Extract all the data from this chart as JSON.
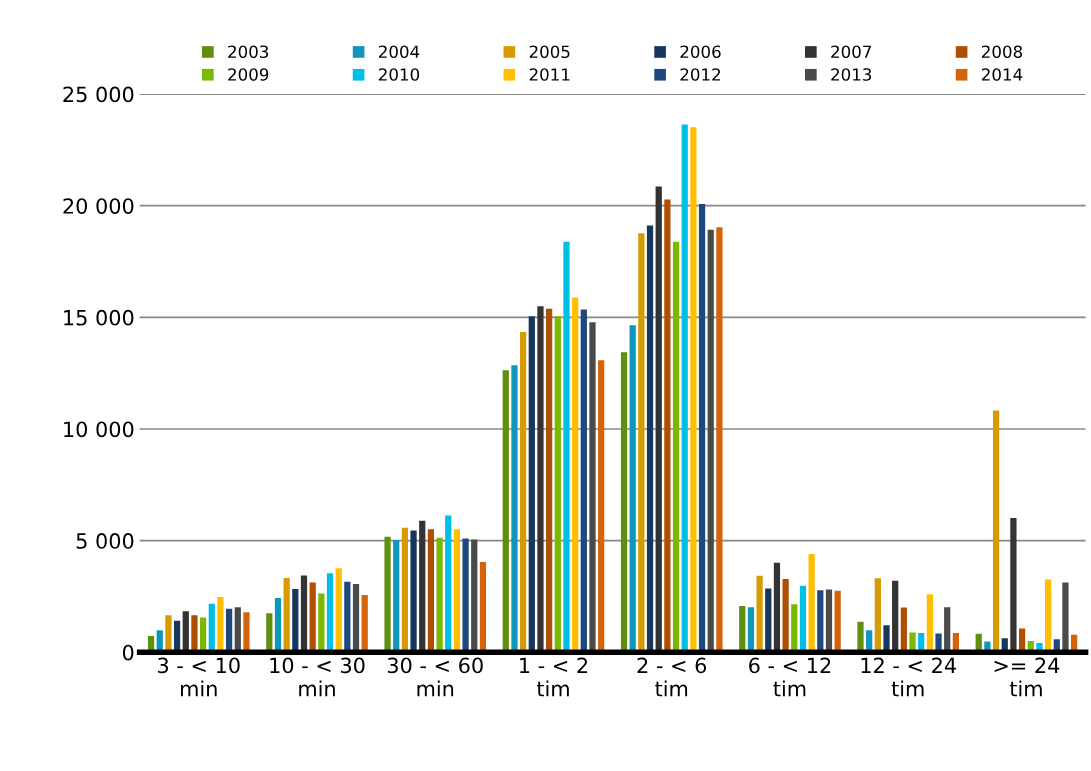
{
  "chart_data": {
    "type": "bar",
    "categories": [
      "3 - < 10\nmin",
      "10 - < 30\nmin",
      "30 - < 60\nmin",
      "1 - < 2\ntim",
      "2 - < 6\ntim",
      "6 - < 12\ntim",
      "12 - < 24\ntim",
      ">= 24\ntim"
    ],
    "series": [
      {
        "name": "2003",
        "color": "#5f8f0f",
        "values": [
          730,
          1750,
          5170,
          12630,
          13440,
          2070,
          1370,
          830
        ]
      },
      {
        "name": "2004",
        "color": "#0f97bb",
        "values": [
          990,
          2430,
          5030,
          12850,
          14650,
          2020,
          990,
          480
        ]
      },
      {
        "name": "2005",
        "color": "#d69b00",
        "values": [
          1660,
          3330,
          5580,
          14340,
          18770,
          3430,
          3310,
          10830
        ]
      },
      {
        "name": "2006",
        "color": "#17375e",
        "values": [
          1410,
          2830,
          5450,
          15050,
          19110,
          2860,
          1210,
          630
        ]
      },
      {
        "name": "2007",
        "color": "#333333",
        "values": [
          1840,
          3440,
          5890,
          15500,
          20860,
          4010,
          3200,
          6010
        ]
      },
      {
        "name": "2008",
        "color": "#b04f04",
        "values": [
          1660,
          3130,
          5510,
          15380,
          20280,
          3280,
          2000,
          1060
        ]
      },
      {
        "name": "2009",
        "color": "#7ab900",
        "values": [
          1560,
          2630,
          5130,
          15050,
          18380,
          2150,
          890,
          500
        ]
      },
      {
        "name": "2010",
        "color": "#00bfe6",
        "values": [
          2170,
          3540,
          6130,
          18390,
          23640,
          2980,
          860,
          410
        ]
      },
      {
        "name": "2011",
        "color": "#ffbf00",
        "values": [
          2480,
          3760,
          5510,
          15890,
          23510,
          4400,
          2600,
          3260
        ]
      },
      {
        "name": "2012",
        "color": "#1f497d",
        "values": [
          1950,
          3160,
          5100,
          15350,
          20080,
          2780,
          840,
          580
        ]
      },
      {
        "name": "2013",
        "color": "#4a4a4a",
        "values": [
          2020,
          3060,
          5050,
          14780,
          18920,
          2810,
          2020,
          3130
        ]
      },
      {
        "name": "2014",
        "color": "#d4640a",
        "values": [
          1790,
          2570,
          4040,
          13080,
          19040,
          2760,
          860,
          790
        ]
      }
    ],
    "ylim": [
      0,
      25000
    ],
    "yticks": [
      0,
      {
        "value": 5000,
        "label": "5 000"
      },
      {
        "value": 10000,
        "label": "10 000"
      },
      {
        "value": 15000,
        "label": "15 000"
      },
      {
        "value": 20000,
        "label": "20 000"
      },
      {
        "value": 25000,
        "label": "25 000"
      }
    ],
    "grid": "y",
    "legend": "top"
  }
}
